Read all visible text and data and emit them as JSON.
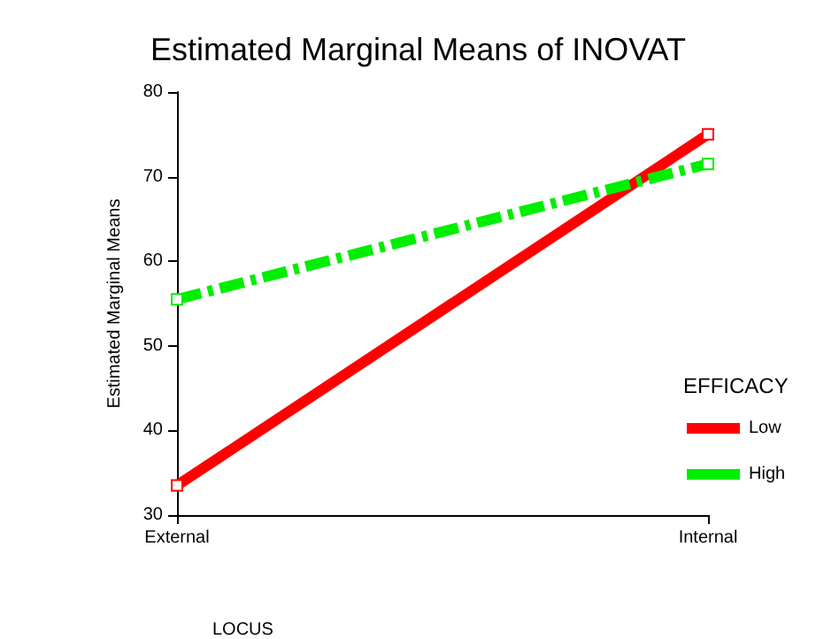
{
  "chart_data": {
    "type": "line",
    "title": "Estimated Marginal Means of INOVAT",
    "xlabel": "LOCUS",
    "ylabel": "Estimated Marginal Means",
    "legend_title": "EFFICACY",
    "categories": [
      "External",
      "Internal"
    ],
    "series": [
      {
        "name": "Low",
        "color": "#ff0000",
        "values": [
          33.5,
          75
        ],
        "line_style": "solid"
      },
      {
        "name": "High",
        "color": "#00ee00",
        "values": [
          55.5,
          71.5
        ],
        "line_style": "dashed"
      }
    ],
    "ylim": [
      30,
      80
    ],
    "yticks": [
      30,
      40,
      50,
      60,
      70,
      80
    ],
    "grid": false,
    "legend": "right",
    "marker": "square"
  }
}
